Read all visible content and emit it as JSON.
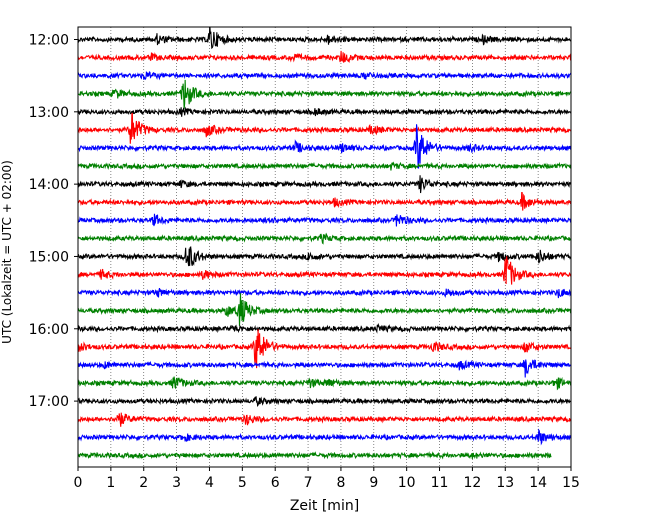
{
  "chart_data": {
    "type": "line",
    "subtype": "helicorder",
    "title": "",
    "xlabel": "Zeit  [min]",
    "ylabel": "UTC (Lokalzeit = UTC + 02:00)",
    "xlim": [
      0,
      15
    ],
    "x_ticks": [
      0,
      1,
      2,
      3,
      4,
      5,
      6,
      7,
      8,
      9,
      10,
      11,
      12,
      13,
      14,
      15
    ],
    "y_tick_labels": [
      "12:00",
      "13:00",
      "14:00",
      "15:00",
      "16:00",
      "17:00"
    ],
    "rows_per_hour": 4,
    "row_minutes": 15,
    "start_time": "12:00",
    "grid": "vertical-dotted",
    "legend": "none",
    "trace_colors": [
      "#000000",
      "#ff0000",
      "#0000ff",
      "#008000"
    ],
    "series": [
      {
        "time": "12:00",
        "color": "#000000",
        "events": [
          {
            "x": 4.0,
            "amp": 1.6
          },
          {
            "x": 2.4,
            "amp": 0.5
          },
          {
            "x": 7.6,
            "amp": 0.5
          },
          {
            "x": 12.3,
            "amp": 0.4
          }
        ]
      },
      {
        "time": "12:15",
        "color": "#ff0000",
        "events": [
          {
            "x": 8.0,
            "amp": 0.7
          },
          {
            "x": 6.5,
            "amp": 0.4
          },
          {
            "x": 2.2,
            "amp": 0.3
          }
        ]
      },
      {
        "time": "12:30",
        "color": "#0000ff",
        "events": [
          {
            "x": 2.0,
            "amp": 0.4
          },
          {
            "x": 8.7,
            "amp": 0.35
          }
        ]
      },
      {
        "time": "12:45",
        "color": "#008000",
        "events": [
          {
            "x": 3.2,
            "amp": 2.1
          },
          {
            "x": 1.1,
            "amp": 0.5
          }
        ]
      },
      {
        "time": "13:00",
        "color": "#000000",
        "events": [
          {
            "x": 3.1,
            "amp": 0.35
          },
          {
            "x": 7.2,
            "amp": 0.35
          }
        ]
      },
      {
        "time": "13:15",
        "color": "#ff0000",
        "events": [
          {
            "x": 1.6,
            "amp": 2.2
          },
          {
            "x": 3.9,
            "amp": 0.7
          },
          {
            "x": 8.9,
            "amp": 0.5
          }
        ]
      },
      {
        "time": "13:30",
        "color": "#0000ff",
        "events": [
          {
            "x": 10.3,
            "amp": 3.0
          },
          {
            "x": 6.6,
            "amp": 0.6
          },
          {
            "x": 8.0,
            "amp": 0.5
          },
          {
            "x": 11.9,
            "amp": 0.4
          }
        ]
      },
      {
        "time": "13:45",
        "color": "#008000",
        "events": [
          {
            "x": 9.5,
            "amp": 0.3
          }
        ]
      },
      {
        "time": "14:00",
        "color": "#000000",
        "events": [
          {
            "x": 10.4,
            "amp": 0.9
          },
          {
            "x": 3.1,
            "amp": 0.3
          }
        ]
      },
      {
        "time": "14:15",
        "color": "#ff0000",
        "events": [
          {
            "x": 13.5,
            "amp": 0.9
          },
          {
            "x": 7.8,
            "amp": 0.4
          }
        ]
      },
      {
        "time": "14:30",
        "color": "#0000ff",
        "events": [
          {
            "x": 9.7,
            "amp": 0.8
          },
          {
            "x": 2.3,
            "amp": 0.6
          },
          {
            "x": 5.7,
            "amp": 0.4
          }
        ]
      },
      {
        "time": "14:45",
        "color": "#008000",
        "events": [
          {
            "x": 7.4,
            "amp": 0.4
          }
        ]
      },
      {
        "time": "15:00",
        "color": "#000000",
        "events": [
          {
            "x": 3.3,
            "amp": 1.9
          },
          {
            "x": 14.0,
            "amp": 0.8
          },
          {
            "x": 12.8,
            "amp": 0.5
          },
          {
            "x": 7.0,
            "amp": 0.4
          }
        ]
      },
      {
        "time": "15:15",
        "color": "#ff0000",
        "events": [
          {
            "x": 13.0,
            "amp": 2.5
          },
          {
            "x": 0.7,
            "amp": 0.5
          },
          {
            "x": 3.8,
            "amp": 0.5
          }
        ]
      },
      {
        "time": "15:30",
        "color": "#0000ff",
        "events": [
          {
            "x": 14.6,
            "amp": 0.5
          },
          {
            "x": 2.4,
            "amp": 0.4
          },
          {
            "x": 11.2,
            "amp": 0.4
          }
        ]
      },
      {
        "time": "15:45",
        "color": "#008000",
        "events": [
          {
            "x": 4.9,
            "amp": 2.0
          },
          {
            "x": 4.5,
            "amp": 0.6
          }
        ]
      },
      {
        "time": "16:00",
        "color": "#000000",
        "events": [
          {
            "x": 4.7,
            "amp": 0.3
          },
          {
            "x": 9.1,
            "amp": 0.3
          }
        ]
      },
      {
        "time": "16:15",
        "color": "#ff0000",
        "events": [
          {
            "x": 5.4,
            "amp": 3.0
          },
          {
            "x": 10.8,
            "amp": 0.6
          },
          {
            "x": 0.0,
            "amp": 0.5
          },
          {
            "x": 13.6,
            "amp": 0.6
          }
        ]
      },
      {
        "time": "16:30",
        "color": "#0000ff",
        "events": [
          {
            "x": 13.6,
            "amp": 1.2
          },
          {
            "x": 11.6,
            "amp": 0.4
          },
          {
            "x": 0.8,
            "amp": 0.3
          }
        ]
      },
      {
        "time": "16:45",
        "color": "#008000",
        "events": [
          {
            "x": 2.9,
            "amp": 0.8
          },
          {
            "x": 14.5,
            "amp": 0.7
          },
          {
            "x": 7.0,
            "amp": 0.5
          },
          {
            "x": 7.6,
            "amp": 0.4
          }
        ]
      },
      {
        "time": "17:00",
        "color": "#000000",
        "events": [
          {
            "x": 5.4,
            "amp": 0.4
          }
        ]
      },
      {
        "time": "17:15",
        "color": "#ff0000",
        "events": [
          {
            "x": 1.2,
            "amp": 1.0
          },
          {
            "x": 5.1,
            "amp": 0.6
          }
        ]
      },
      {
        "time": "17:30",
        "color": "#0000ff",
        "events": [
          {
            "x": 14.0,
            "amp": 0.8
          },
          {
            "x": 3.2,
            "amp": 0.4
          }
        ]
      },
      {
        "time": "17:45",
        "color": "#008000",
        "events": [
          {
            "x": 12.0,
            "amp": 0.2
          }
        ],
        "end_x": 14.4
      }
    ]
  }
}
